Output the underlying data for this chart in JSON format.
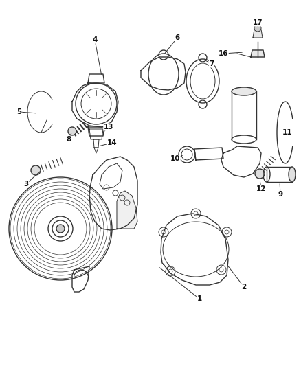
{
  "bg_color": "#ffffff",
  "line_color": "#333333",
  "label_color": "#111111",
  "fig_width": 4.38,
  "fig_height": 5.33,
  "dpi": 100
}
